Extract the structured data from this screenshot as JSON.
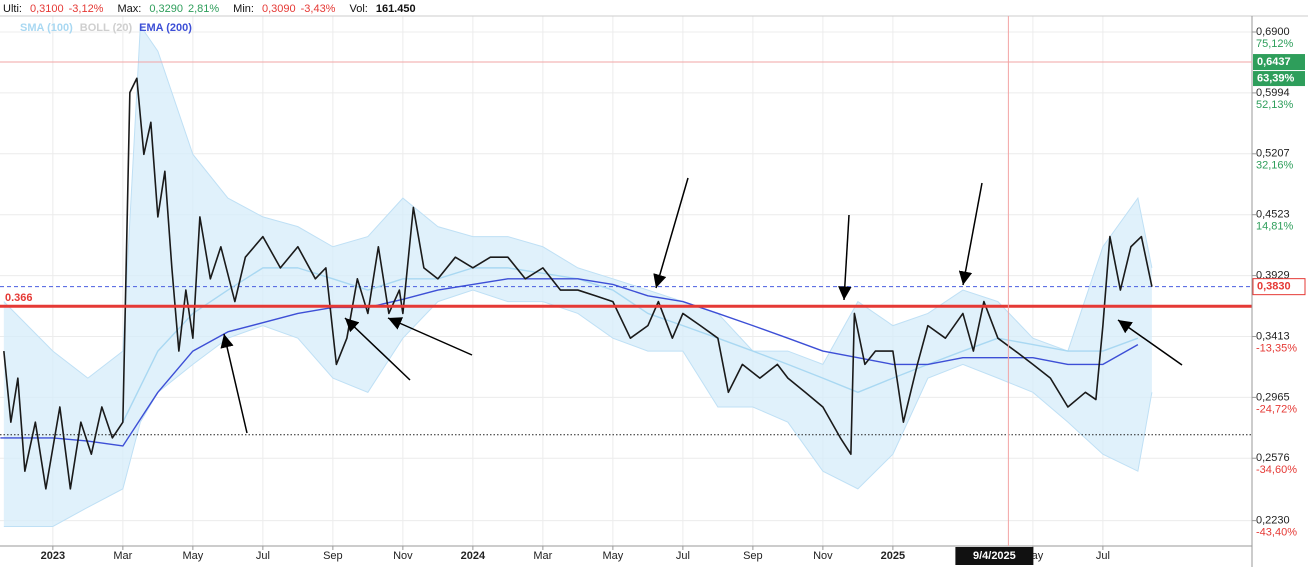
{
  "chart_data": {
    "type": "line",
    "log_scale": true,
    "grid": true,
    "stats": [
      {
        "label": "Ulti:",
        "value": "0,3100",
        "change": "-3,12%",
        "color": "#e53935"
      },
      {
        "label": "Max:",
        "value": "0,3290",
        "change": "2,81%",
        "color": "#2e9e5b"
      },
      {
        "label": "Min:",
        "value": "0,3090",
        "change": "-3,43%",
        "color": "#e53935"
      },
      {
        "label": "Vol:",
        "value": "161.450",
        "color": "#111111"
      }
    ],
    "xlim": [
      -1.51,
      34.26
    ],
    "xticks": [
      {
        "value": 0,
        "label": "2023"
      },
      {
        "value": 2,
        "label": "Mar"
      },
      {
        "value": 4,
        "label": "May"
      },
      {
        "value": 6,
        "label": "Jul"
      },
      {
        "value": 8,
        "label": "Sep"
      },
      {
        "value": 10,
        "label": "Nov"
      },
      {
        "value": 12,
        "label": "2024"
      },
      {
        "value": 14,
        "label": "Mar"
      },
      {
        "value": 16,
        "label": "May"
      },
      {
        "value": 18,
        "label": "Jul"
      },
      {
        "value": 20,
        "label": "Sep"
      },
      {
        "value": 22,
        "label": "Nov"
      },
      {
        "value": 24,
        "label": "2025"
      },
      {
        "value": 28,
        "label": "May"
      },
      {
        "value": 30,
        "label": "Jul"
      }
    ],
    "ylim": [
      0.2103,
      0.716
    ],
    "yticks": [
      {
        "value": 0.69,
        "label": "0,6900"
      },
      {
        "value": 0.5994,
        "label": "0,5994"
      },
      {
        "value": 0.5207,
        "label": "0,5207"
      },
      {
        "value": 0.4523,
        "label": "0,4523"
      },
      {
        "value": 0.3929,
        "label": "0,3929"
      },
      {
        "value": 0.3413,
        "label": "0,3413"
      },
      {
        "value": 0.2965,
        "label": "0,2965"
      },
      {
        "value": 0.2576,
        "label": "0,2576"
      },
      {
        "value": 0.223,
        "label": "0,2230"
      }
    ],
    "ytick_changes": [
      "75,12%",
      "52,13%",
      "32,16%",
      "14,81%",
      null,
      "-13,35%",
      "-24,72%",
      "-34,60%",
      "-43,40%"
    ],
    "series": [
      {
        "color": "#1a1a1a",
        "x": [
          -1.4,
          -1.2,
          -1.0,
          -0.8,
          -0.5,
          -0.2,
          0.2,
          0.5,
          0.8,
          1.1,
          1.4,
          1.7,
          2.0,
          2.2,
          2.4,
          2.6,
          2.8,
          3.0,
          3.2,
          3.4,
          3.6,
          3.8,
          4.0,
          4.2,
          4.5,
          4.8,
          5.2,
          5.5,
          6.0,
          6.5,
          7.0,
          7.5,
          7.8,
          8.1,
          8.4,
          8.7,
          9.0,
          9.3,
          9.6,
          9.9,
          10.0,
          10.3,
          10.6,
          11.0,
          11.5,
          12.0,
          12.5,
          13.0,
          13.5,
          14.0,
          14.5,
          15.0,
          15.5,
          16.0,
          16.5,
          17.0,
          17.3,
          17.7,
          18.0,
          18.5,
          19.0,
          19.3,
          19.7,
          20.2,
          20.7,
          21.0,
          21.5,
          22.0,
          22.5,
          22.8,
          22.9,
          23.2,
          23.5,
          24.0,
          24.3,
          24.7,
          25.0,
          25.5,
          26.0,
          26.3,
          26.6,
          27.0,
          27.5,
          28.0,
          28.5,
          29.0,
          29.5,
          29.8,
          30.0,
          30.2,
          30.5,
          30.8,
          31.1,
          31.4
        ],
        "values": [
          0.33,
          0.28,
          0.31,
          0.25,
          0.28,
          0.24,
          0.29,
          0.24,
          0.28,
          0.26,
          0.29,
          0.27,
          0.28,
          0.6,
          0.62,
          0.52,
          0.56,
          0.45,
          0.5,
          0.4,
          0.33,
          0.38,
          0.34,
          0.45,
          0.39,
          0.42,
          0.37,
          0.41,
          0.43,
          0.4,
          0.42,
          0.39,
          0.4,
          0.32,
          0.34,
          0.39,
          0.36,
          0.42,
          0.36,
          0.38,
          0.36,
          0.46,
          0.4,
          0.39,
          0.41,
          0.4,
          0.41,
          0.41,
          0.39,
          0.4,
          0.38,
          0.38,
          0.375,
          0.37,
          0.34,
          0.35,
          0.37,
          0.34,
          0.36,
          0.35,
          0.34,
          0.3,
          0.32,
          0.31,
          0.32,
          0.31,
          0.3,
          0.29,
          0.27,
          0.26,
          0.36,
          0.32,
          0.33,
          0.33,
          0.28,
          0.32,
          0.35,
          0.34,
          0.36,
          0.33,
          0.37,
          0.34,
          0.33,
          0.32,
          0.31,
          0.29,
          0.3,
          0.295,
          0.35,
          0.43,
          0.38,
          0.42,
          0.43,
          0.383
        ]
      },
      {
        "name": "SMA (100)",
        "color": "#a9d8f2",
        "x": [
          2,
          3,
          4,
          5,
          6,
          7,
          8,
          9,
          10,
          11,
          12,
          13,
          14,
          15,
          16,
          17,
          18,
          19,
          20,
          21,
          22,
          23,
          24,
          25,
          26,
          27,
          28,
          29,
          30,
          31
        ],
        "values": [
          0.28,
          0.33,
          0.36,
          0.38,
          0.4,
          0.4,
          0.39,
          0.38,
          0.39,
          0.39,
          0.4,
          0.4,
          0.395,
          0.39,
          0.38,
          0.36,
          0.35,
          0.34,
          0.33,
          0.32,
          0.31,
          0.3,
          0.31,
          0.32,
          0.33,
          0.34,
          0.335,
          0.33,
          0.33,
          0.34
        ]
      },
      {
        "name": "EMA (200)",
        "color": "#3d4fd6",
        "x": [
          -1.5,
          0,
          1,
          2,
          3,
          4,
          5,
          7,
          8,
          9,
          10,
          11,
          12,
          13,
          14,
          15,
          16,
          17,
          18,
          19,
          20,
          21,
          22,
          23,
          24,
          25,
          26,
          27,
          28,
          29,
          30,
          31
        ],
        "values": [
          0.27,
          0.27,
          0.268,
          0.265,
          0.3,
          0.33,
          0.345,
          0.36,
          0.365,
          0.365,
          0.372,
          0.38,
          0.385,
          0.39,
          0.39,
          0.39,
          0.385,
          0.375,
          0.37,
          0.36,
          0.35,
          0.34,
          0.33,
          0.325,
          0.32,
          0.32,
          0.325,
          0.325,
          0.325,
          0.32,
          0.32,
          0.335
        ]
      }
    ],
    "band": {
      "name": "BOLL (20)",
      "color": "#d6ecfa",
      "legend_color": "#cfcfcf",
      "x": [
        -1.4,
        0,
        1,
        2,
        2.5,
        3,
        4,
        5,
        6,
        7,
        8,
        9,
        10,
        11,
        12,
        13,
        14,
        15,
        16,
        17,
        18,
        19,
        20,
        21,
        22,
        23,
        24,
        25,
        26,
        27,
        28,
        29,
        30,
        31,
        31.4
      ],
      "upper": [
        0.37,
        0.33,
        0.31,
        0.33,
        0.7,
        0.66,
        0.52,
        0.47,
        0.45,
        0.44,
        0.42,
        0.43,
        0.47,
        0.44,
        0.43,
        0.43,
        0.42,
        0.4,
        0.39,
        0.38,
        0.37,
        0.36,
        0.33,
        0.33,
        0.32,
        0.37,
        0.35,
        0.36,
        0.38,
        0.37,
        0.34,
        0.33,
        0.42,
        0.47,
        0.4
      ],
      "lower": [
        0.22,
        0.22,
        0.23,
        0.24,
        0.28,
        0.3,
        0.32,
        0.34,
        0.35,
        0.34,
        0.31,
        0.3,
        0.34,
        0.37,
        0.38,
        0.37,
        0.37,
        0.36,
        0.34,
        0.33,
        0.33,
        0.29,
        0.29,
        0.28,
        0.25,
        0.24,
        0.26,
        0.31,
        0.32,
        0.31,
        0.3,
        0.28,
        0.26,
        0.25,
        0.3
      ]
    },
    "level": {
      "value": 0.366,
      "label": "0.366",
      "color": "#e53935"
    },
    "reference_line": {
      "value": 0.272,
      "color": "#222222"
    },
    "last_price": {
      "value": 0.383,
      "label": "0,3830",
      "color": "#e53935",
      "line_color": "#4a5ee0"
    },
    "cursor": {
      "x": 27.3,
      "x_label": "9/4/2025",
      "y": 0.6437,
      "y_label": "0,6437",
      "y_change": "63,39%",
      "color": "#f2a4a4",
      "tag_color": "#2e9e5b"
    }
  }
}
